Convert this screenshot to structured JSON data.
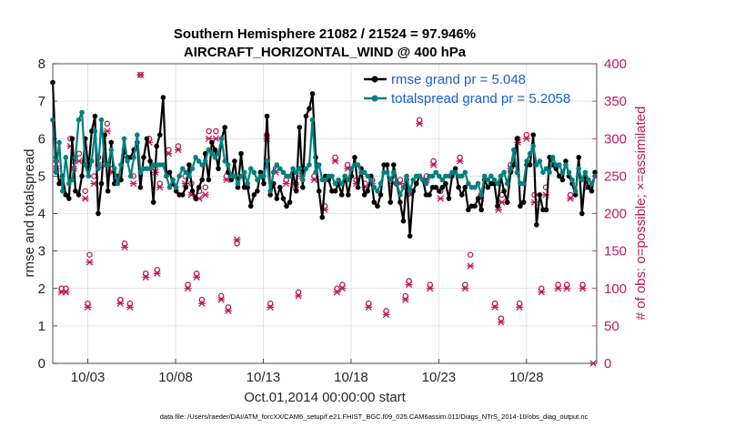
{
  "chart_data": {
    "type": "line",
    "title_line1": "Southern Hemisphere 21082 / 21524 = 97.946%",
    "title_line2": "AIRCRAFT_HORIZONTAL_WIND @ 400 hPa",
    "xlabel": "Oct.01,2014 00:00:00 start",
    "ylabel": "rmse and totalspread",
    "y2label": "# of obs: o=possible; ×=assimilated",
    "xlim": [
      1.0,
      32.0
    ],
    "ylim": [
      0,
      8
    ],
    "y2lim": [
      0,
      400
    ],
    "xticks": [
      3,
      8,
      13,
      18,
      23,
      28
    ],
    "xtick_labels": [
      "10/03",
      "10/08",
      "10/13",
      "10/18",
      "10/23",
      "10/28"
    ],
    "yticks": [
      "0",
      "1",
      "2",
      "3",
      "4",
      "5",
      "6",
      "7",
      "8"
    ],
    "y2ticks": [
      "0",
      "50",
      "100",
      "150",
      "200",
      "250",
      "300",
      "350",
      "400"
    ],
    "grid": true,
    "legend_position": "top-right",
    "colors": {
      "rmse": "#000000",
      "spread": "#00807f",
      "obs": "#c2185b",
      "legend_text": "#1a5fd1",
      "right_axis": "#c2185b"
    },
    "series": [
      {
        "name": "rmse grand pr = 5.048",
        "values": [
          7.5,
          5.5,
          4.8,
          5.0,
          4.5,
          4.4,
          6.0,
          4.6,
          4.5,
          5.0,
          6.0,
          5.2,
          6.2,
          6.6,
          4.0,
          4.8,
          6.1,
          4.6,
          5.9,
          4.8,
          5.0,
          4.9,
          5.7,
          5.5,
          5.5,
          5.7,
          5.9,
          4.7,
          5.5,
          6.0,
          5.4,
          4.3,
          5.8,
          6.1,
          7.1,
          5.0,
          5.1,
          4.8,
          4.6,
          4.5,
          4.5,
          4.7,
          5.3,
          4.6,
          4.4,
          4.7,
          4.9,
          5.6,
          4.9,
          5.9,
          5.7,
          5.2,
          6.0,
          6.3,
          5.1,
          4.9,
          5.4,
          4.7,
          5.6,
          4.7,
          4.7,
          4.2,
          4.5,
          4.6,
          5.1,
          4.8,
          6.6,
          4.5,
          4.8,
          4.4,
          4.7,
          4.4,
          4.2,
          4.3,
          5.1,
          4.6,
          6.3,
          4.7,
          6.6,
          6.8,
          7.2,
          5.5,
          4.6,
          3.9,
          5.0,
          4.9,
          4.6,
          4.6,
          4.8,
          4.5,
          5.0,
          4.5,
          5.0,
          5.5,
          4.7,
          5.2,
          4.5,
          4.6,
          5.0,
          4.3,
          4.2,
          4.5,
          5.3,
          5.3,
          4.3,
          5.3,
          4.8,
          4.3,
          3.8,
          4.9,
          3.4,
          4.6,
          4.8,
          5.0,
          4.9,
          4.5,
          4.5,
          4.7,
          4.7,
          4.6,
          4.7,
          4.8,
          4.4,
          5.0,
          5.2,
          4.7,
          4.5,
          4.7,
          4.1,
          4.2,
          4.2,
          4.4,
          4.1,
          4.9,
          4.7,
          4.8,
          4.8,
          4.2,
          5.0,
          4.6,
          4.3,
          5.1,
          5.3,
          6.0,
          4.2,
          4.3,
          5.3,
          5.3,
          6.1,
          3.7,
          4.5,
          4.1,
          4.1,
          5.5,
          5.3,
          5.2,
          5.0,
          4.9,
          5.4,
          5.0,
          4.8,
          4.5,
          5.5,
          4.0,
          5.0,
          4.7,
          4.6,
          5.1
        ],
        "color": "#000000"
      },
      {
        "name": "totalspread grand pr = 5.2058",
        "values": [
          6.5,
          5.1,
          5.9,
          4.6,
          5.5,
          4.8,
          4.9,
          5.5,
          6.5,
          6.7,
          5.3,
          5.0,
          5.4,
          6.2,
          5.2,
          6.5,
          5.3,
          5.3,
          5.7,
          5.2,
          4.8,
          5.3,
          6.0,
          5.4,
          5.0,
          5.5,
          6.1,
          5.1,
          5.2,
          5.2,
          5.2,
          5.3,
          5.3,
          5.3,
          5.3,
          5.0,
          4.7,
          4.9,
          4.7,
          5.0,
          5.2,
          5.1,
          5.0,
          5.2,
          5.5,
          5.4,
          5.3,
          5.4,
          5.7,
          5.6,
          5.5,
          5.6,
          6.0,
          5.4,
          5.3,
          5.0,
          5.0,
          4.8,
          5.0,
          5.1,
          4.8,
          5.2,
          5.1,
          4.9,
          5.0,
          5.0,
          5.4,
          4.6,
          5.1,
          5.3,
          5.2,
          5.1,
          5.0,
          5.0,
          5.2,
          5.1,
          5.2,
          4.9,
          5.2,
          5.3,
          6.5,
          5.1,
          5.3,
          4.9,
          4.9,
          5.0,
          5.0,
          4.8,
          4.9,
          4.8,
          5.0,
          4.9,
          5.2,
          5.3,
          5.3,
          5.1,
          5.1,
          5.0,
          4.9,
          4.7,
          4.6,
          4.8,
          5.1,
          5.1,
          4.9,
          5.1,
          4.8,
          4.5,
          4.7,
          5.0,
          4.6,
          4.9,
          5.0,
          5.0,
          4.9,
          4.8,
          5.0,
          5.0,
          5.1,
          5.0,
          4.9,
          5.0,
          5.0,
          5.1,
          5.1,
          5.0,
          5.0,
          5.1,
          4.8,
          4.7,
          4.7,
          4.8,
          4.5,
          5.0,
          4.9,
          5.0,
          4.9,
          4.8,
          5.0,
          5.1,
          4.8,
          5.2,
          5.7,
          5.1,
          4.8,
          4.8,
          5.4,
          5.6,
          5.8,
          5.3,
          5.4,
          5.1,
          5.2,
          5.1,
          5.5,
          5.3,
          5.3,
          5.1,
          5.3,
          5.1,
          4.9,
          4.6,
          5.2,
          4.9,
          5.1,
          4.9,
          4.8,
          5.0
        ],
        "color": "#00807f"
      }
    ],
    "obs_series": [
      {
        "marker": "o",
        "points": [
          [
            1.2,
            270
          ],
          [
            1.5,
            100
          ],
          [
            1.75,
            100
          ],
          [
            2.0,
            300
          ],
          [
            2.2,
            270
          ],
          [
            2.5,
            280
          ],
          [
            2.85,
            230
          ],
          [
            3.1,
            145
          ],
          [
            3.35,
            250
          ],
          [
            3.6,
            275
          ],
          [
            4.1,
            320
          ],
          [
            4.4,
            260
          ],
          [
            5.1,
            160
          ],
          [
            5.6,
            250
          ],
          [
            6.0,
            385
          ],
          [
            6.5,
            300
          ],
          [
            6.85,
            260
          ],
          [
            7.1,
            240
          ],
          [
            7.6,
            285
          ],
          [
            8.15,
            290
          ],
          [
            8.55,
            250
          ],
          [
            8.9,
            240
          ],
          [
            9.35,
            230
          ],
          [
            9.7,
            235
          ],
          [
            9.9,
            310
          ],
          [
            10.3,
            310
          ],
          [
            10.9,
            250
          ],
          [
            11.5,
            160
          ],
          [
            13.2,
            305
          ],
          [
            13.7,
            260
          ],
          [
            14.3,
            245
          ],
          [
            14.85,
            240
          ],
          [
            15.2,
            260
          ],
          [
            15.9,
            250
          ],
          [
            16.5,
            210
          ],
          [
            17.1,
            275
          ],
          [
            17.8,
            265
          ],
          [
            18.3,
            245
          ],
          [
            18.8,
            240
          ],
          [
            19.2,
            245
          ],
          [
            20.4,
            245
          ],
          [
            20.8,
            245
          ],
          [
            21.4,
            230
          ],
          [
            21.9,
            325
          ],
          [
            22.3,
            250
          ],
          [
            22.7,
            270
          ],
          [
            23.1,
            230
          ],
          [
            24.2,
            275
          ],
          [
            25.4,
            225
          ],
          [
            26.4,
            215
          ],
          [
            26.6,
            225
          ],
          [
            27.1,
            265
          ],
          [
            27.5,
            300
          ],
          [
            28.0,
            305
          ],
          [
            28.45,
            225
          ],
          [
            29.1,
            235
          ],
          [
            30.5,
            225
          ],
          [
            31.5,
            240
          ],
          [
            3.0,
            80
          ],
          [
            4.85,
            85
          ],
          [
            5.4,
            80
          ],
          [
            6.3,
            120
          ],
          [
            8.7,
            105
          ],
          [
            9.5,
            85
          ],
          [
            10.6,
            90
          ],
          [
            11.0,
            75
          ],
          [
            13.4,
            80
          ],
          [
            15.0,
            95
          ],
          [
            17.2,
            100
          ],
          [
            19.0,
            80
          ],
          [
            20.0,
            70
          ],
          [
            21.1,
            90
          ],
          [
            22.5,
            105
          ],
          [
            24.5,
            105
          ],
          [
            26.2,
            80
          ],
          [
            27.6,
            80
          ],
          [
            28.85,
            100
          ],
          [
            30.3,
            105
          ],
          [
            31.2,
            105
          ],
          [
            6.95,
            125
          ],
          [
            9.2,
            120
          ],
          [
            17.5,
            105
          ],
          [
            21.3,
            110
          ],
          [
            24.8,
            145
          ],
          [
            26.55,
            60
          ],
          [
            29.8,
            105
          ]
        ]
      },
      {
        "marker": "x",
        "points": [
          [
            1.2,
            260
          ],
          [
            1.5,
            95
          ],
          [
            1.75,
            95
          ],
          [
            2.0,
            290
          ],
          [
            2.2,
            260
          ],
          [
            2.5,
            270
          ],
          [
            2.85,
            220
          ],
          [
            3.1,
            135
          ],
          [
            3.35,
            240
          ],
          [
            3.6,
            265
          ],
          [
            4.1,
            310
          ],
          [
            4.4,
            255
          ],
          [
            5.1,
            155
          ],
          [
            5.6,
            240
          ],
          [
            6.0,
            385
          ],
          [
            6.5,
            295
          ],
          [
            6.85,
            255
          ],
          [
            7.1,
            235
          ],
          [
            7.6,
            280
          ],
          [
            8.15,
            285
          ],
          [
            8.55,
            240
          ],
          [
            8.9,
            225
          ],
          [
            9.35,
            220
          ],
          [
            9.7,
            225
          ],
          [
            9.9,
            300
          ],
          [
            10.3,
            300
          ],
          [
            10.9,
            245
          ],
          [
            11.5,
            165
          ],
          [
            13.2,
            300
          ],
          [
            13.7,
            255
          ],
          [
            14.3,
            240
          ],
          [
            14.85,
            235
          ],
          [
            15.2,
            250
          ],
          [
            15.9,
            245
          ],
          [
            16.5,
            205
          ],
          [
            17.1,
            270
          ],
          [
            17.8,
            260
          ],
          [
            18.3,
            240
          ],
          [
            18.8,
            235
          ],
          [
            19.2,
            240
          ],
          [
            20.4,
            240
          ],
          [
            20.8,
            240
          ],
          [
            21.4,
            225
          ],
          [
            21.9,
            320
          ],
          [
            22.3,
            245
          ],
          [
            22.7,
            265
          ],
          [
            23.1,
            220
          ],
          [
            24.2,
            270
          ],
          [
            25.4,
            220
          ],
          [
            26.4,
            205
          ],
          [
            26.6,
            215
          ],
          [
            27.1,
            260
          ],
          [
            27.5,
            295
          ],
          [
            28.0,
            300
          ],
          [
            28.45,
            215
          ],
          [
            29.1,
            225
          ],
          [
            30.5,
            220
          ],
          [
            31.5,
            235
          ],
          [
            3.0,
            75
          ],
          [
            4.85,
            80
          ],
          [
            5.4,
            75
          ],
          [
            6.3,
            115
          ],
          [
            8.7,
            100
          ],
          [
            9.5,
            80
          ],
          [
            10.6,
            85
          ],
          [
            11.0,
            70
          ],
          [
            13.4,
            75
          ],
          [
            15.0,
            90
          ],
          [
            17.2,
            95
          ],
          [
            19.0,
            75
          ],
          [
            20.0,
            65
          ],
          [
            21.1,
            85
          ],
          [
            22.5,
            100
          ],
          [
            24.5,
            100
          ],
          [
            26.2,
            75
          ],
          [
            27.6,
            75
          ],
          [
            28.85,
            95
          ],
          [
            30.3,
            100
          ],
          [
            31.2,
            100
          ],
          [
            6.95,
            120
          ],
          [
            9.2,
            115
          ],
          [
            17.5,
            100
          ],
          [
            21.3,
            105
          ],
          [
            24.8,
            130
          ],
          [
            26.55,
            55
          ],
          [
            29.8,
            100
          ],
          [
            31.8,
            0
          ]
        ]
      }
    ]
  },
  "footer": "data file: /Users/raeder/DAI/ATM_forcXX/CAM6_setup/f.e21.FHIST_BGC.f09_025.CAM6assim.011/Diags_NTrS_2014-10/obs_diag_output.nc"
}
